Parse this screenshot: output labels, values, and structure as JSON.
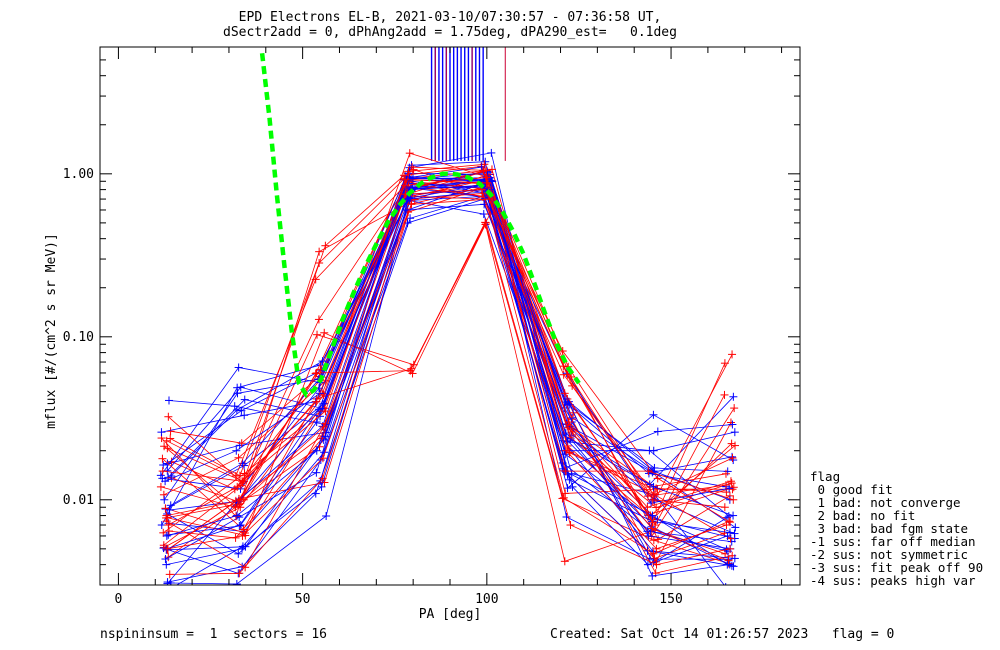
{
  "title": {
    "line1": "EPD Electrons EL-B, 2021-03-10/07:30:57 - 07:36:58 UT,",
    "line2": "dSectr2add = 0, dPhAng2add = 1.75deg, dPA290_est=   0.1deg"
  },
  "footer": {
    "left": "nspininsum =  1  sectors = 16",
    "right": "Created: Sat Oct 14 01:26:57 2023   flag = 0"
  },
  "flag_legend": {
    "heading": "flag",
    "items": [
      " 0 good fit",
      " 1 bad: not converge",
      " 2 bad: no fit",
      " 3 bad: bad fgm state",
      "-1 sus: far off median",
      "-2 sus: not symmetric",
      "-3 sus: fit peak off 90",
      "-4 sus: peaks high var"
    ]
  },
  "colors": {
    "series_a": "#0000ff",
    "series_b": "#ff0000",
    "fit": "#00ff00",
    "axes": "#000000"
  },
  "chart_data": {
    "type": "line",
    "xlabel": "PA [deg]",
    "ylabel": "mflux [#/(cm^2 s sr MeV)]",
    "xscale": "linear",
    "yscale": "log",
    "xlim": [
      -5,
      185
    ],
    "ylim": [
      0.003,
      6.0
    ],
    "xticks": [
      0,
      50,
      100,
      150
    ],
    "xtick_labels": [
      "0",
      "50",
      "100",
      "150"
    ],
    "yticks": [
      0.01,
      0.1,
      1.0
    ],
    "ytick_labels": [
      "0.01",
      "0.10",
      "1.00"
    ],
    "pa_bins": [
      13,
      33,
      55,
      79,
      100,
      122,
      145,
      166
    ],
    "series": [
      {
        "color": "#0000ff",
        "marker": "+",
        "representative_profiles": [
          [
            0.006,
            0.008,
            0.02,
            0.82,
            0.92,
            0.03,
            0.006,
            0.005
          ],
          [
            0.013,
            0.02,
            0.045,
            0.8,
            0.85,
            0.015,
            0.008,
            0.004
          ],
          [
            0.004,
            0.005,
            0.012,
            0.6,
            0.65,
            0.04,
            0.015,
            0.01
          ],
          [
            0.01,
            0.045,
            0.055,
            0.75,
            0.8,
            0.02,
            0.02,
            0.026
          ],
          [
            0.005,
            0.007,
            0.03,
            0.95,
            1.1,
            0.012,
            0.004,
            0.006
          ],
          [
            0.026,
            0.033,
            0.04,
            0.7,
            0.78,
            0.025,
            0.012,
            0.008
          ]
        ]
      },
      {
        "color": "#ff0000",
        "marker": "+",
        "representative_profiles": [
          [
            0.015,
            0.013,
            0.035,
            0.92,
            0.88,
            0.03,
            0.009,
            0.013
          ],
          [
            0.008,
            0.01,
            0.028,
            0.75,
            0.8,
            0.02,
            0.005,
            0.007
          ],
          [
            0.005,
            0.006,
            0.018,
            0.65,
            0.7,
            0.05,
            0.01,
            0.009
          ],
          [
            0.023,
            0.014,
            0.225,
            0.85,
            0.95,
            0.045,
            0.007,
            0.044
          ],
          [
            0.012,
            0.009,
            0.06,
            0.062,
            0.5,
            0.007,
            0.004,
            0.005
          ],
          [
            0.007,
            0.012,
            0.04,
            1.1,
            1.05,
            0.015,
            0.015,
            0.01
          ]
        ]
      }
    ],
    "fit_curve": {
      "color": "#00ff00",
      "style": "dashed",
      "x": [
        39,
        41,
        43,
        45,
        47,
        49,
        51,
        53,
        55,
        58,
        61,
        64,
        67,
        70,
        73,
        76,
        79,
        82,
        85,
        88,
        90,
        92,
        95,
        98,
        101,
        104,
        107,
        110,
        113,
        116,
        119,
        122,
        125
      ],
      "y": [
        5.5,
        2.2,
        0.75,
        0.28,
        0.11,
        0.052,
        0.044,
        0.047,
        0.055,
        0.085,
        0.13,
        0.19,
        0.27,
        0.37,
        0.5,
        0.63,
        0.76,
        0.87,
        0.95,
        1.0,
        1.0,
        0.99,
        0.95,
        0.87,
        0.75,
        0.6,
        0.45,
        0.32,
        0.21,
        0.135,
        0.09,
        0.065,
        0.052
      ]
    },
    "vertical_markers": {
      "x_blue": [
        85,
        86,
        87,
        88,
        89,
        90,
        91,
        92,
        93,
        94,
        95,
        96,
        97,
        98,
        99
      ],
      "x_red": [
        86,
        89,
        96,
        105
      ],
      "y_from": 1.2,
      "y_to": 6.0
    }
  }
}
